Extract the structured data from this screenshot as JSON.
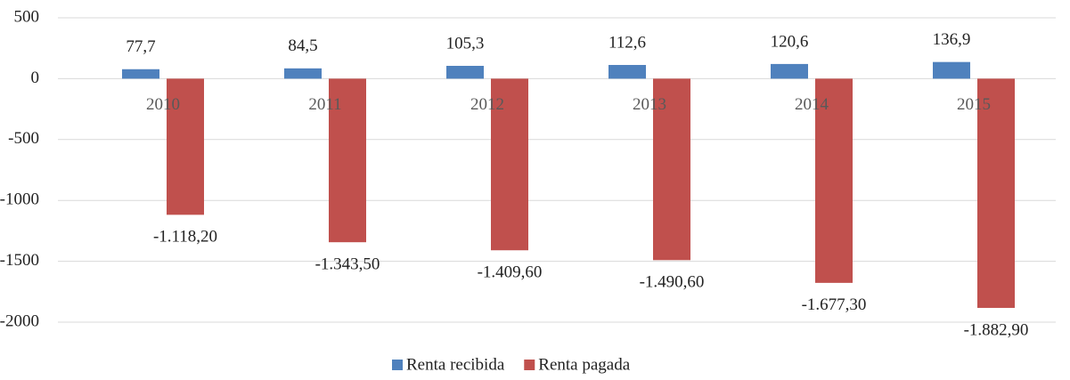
{
  "chart_data": {
    "type": "bar",
    "categories": [
      "2010",
      "2011",
      "2012",
      "2013",
      "2014",
      "2015"
    ],
    "series": [
      {
        "name": "Renta recibida",
        "color": "#4f81bd",
        "values": [
          77.7,
          84.5,
          105.3,
          112.6,
          120.6,
          136.9
        ],
        "value_labels": [
          "77,7",
          "84,5",
          "105,3",
          "112,6",
          "120,6",
          "136,9"
        ]
      },
      {
        "name": "Renta pagada",
        "color": "#c0504d",
        "values": [
          -1118.2,
          -1343.5,
          -1409.6,
          -1490.6,
          -1677.3,
          -1882.9
        ],
        "value_labels": [
          "-1.118,20",
          "-1.343,50",
          "-1.409,60",
          "-1.490,60",
          "-1.677,30",
          "-1.882,90"
        ]
      }
    ],
    "ylim": [
      -2000,
      500
    ],
    "yticks": [
      500,
      0,
      -500,
      -1000,
      -1500,
      -2000
    ],
    "grid": true,
    "legend": "bottom"
  }
}
